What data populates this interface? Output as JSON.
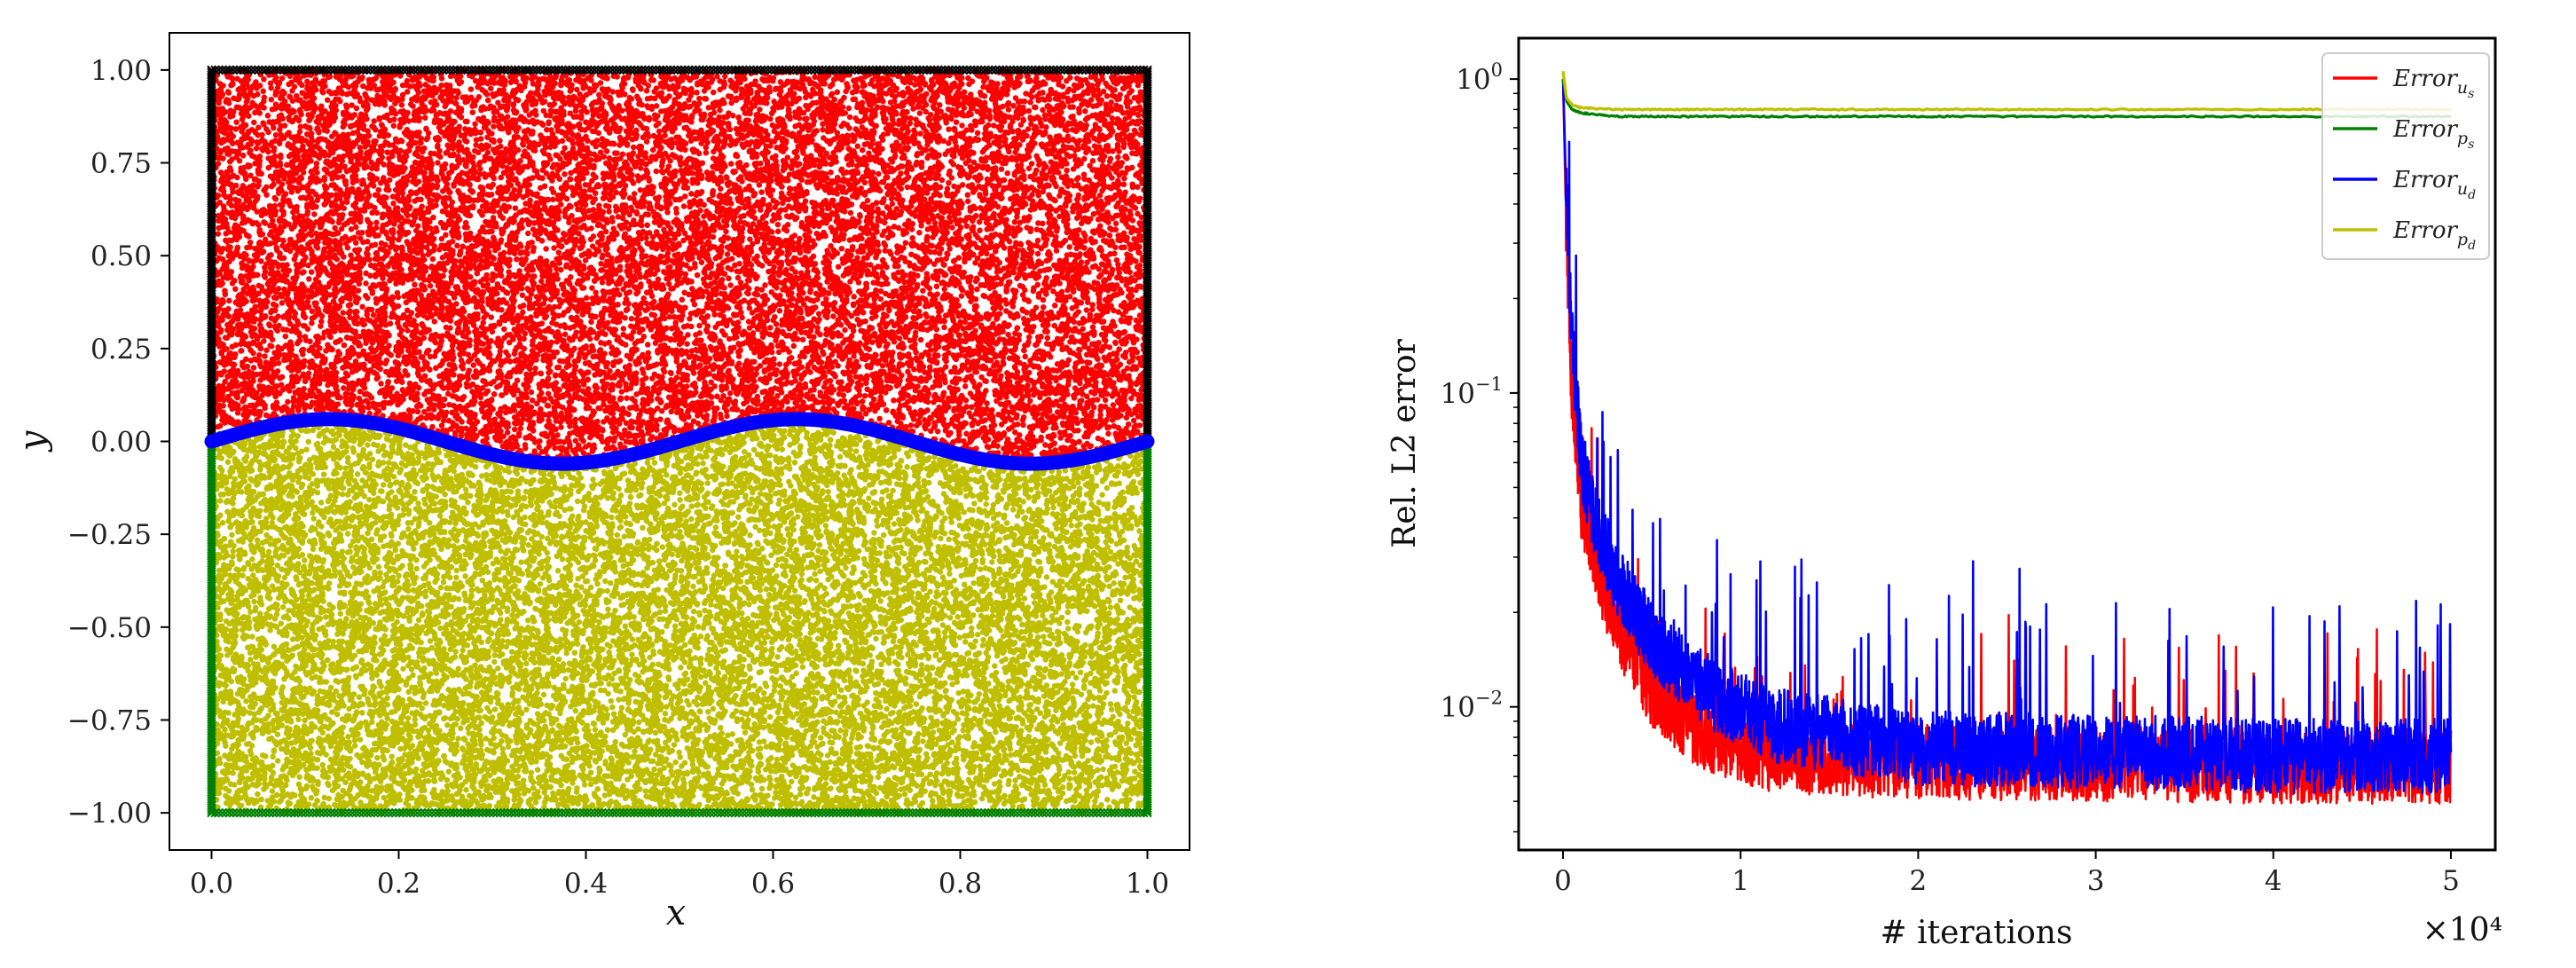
{
  "chart_data": [
    {
      "type": "scatter",
      "xlabel": "x",
      "ylabel": "y",
      "xlim": [
        -0.045,
        1.045
      ],
      "ylim": [
        -1.1,
        1.1
      ],
      "x_ticks": [
        "0.0",
        "0.2",
        "0.4",
        "0.6",
        "0.8",
        "1.0"
      ],
      "x_tick_values": [
        0.0,
        0.2,
        0.4,
        0.6,
        0.8,
        1.0
      ],
      "y_ticks": [
        "1.00",
        "0.75",
        "0.50",
        "0.25",
        "0.00",
        "−0.25",
        "−0.50",
        "−0.75",
        "−1.00"
      ],
      "y_tick_values": [
        1.0,
        0.75,
        0.5,
        0.25,
        0.0,
        -0.25,
        -0.5,
        -0.75,
        -1.0
      ],
      "interface": {
        "amplitude": 0.06,
        "periods": 2,
        "expression": "y = 0.06 sin(4πx)"
      },
      "regions": [
        {
          "name": "upper domain interior",
          "color": "#ff0000",
          "y_range": "interface to 1",
          "marker": "dot"
        },
        {
          "name": "lower domain interior",
          "color": "#bfbf00",
          "y_range": "-1 to interface",
          "marker": "dot"
        },
        {
          "name": "interface",
          "color": "#0000ff",
          "marker": "dot"
        },
        {
          "name": "upper boundary",
          "color": "#000000",
          "marker": "x"
        },
        {
          "name": "lower boundary",
          "color": "#008000",
          "marker": "x"
        }
      ]
    },
    {
      "type": "line",
      "xlabel": "# iterations",
      "ylabel": "Rel. L2 error",
      "yscale": "log",
      "xlim": [
        -2500,
        52500
      ],
      "ylim": [
        0.0035,
        1.35
      ],
      "x_ticks": [
        "0",
        "1",
        "2",
        "3",
        "4",
        "5"
      ],
      "x_tick_values": [
        0,
        10000,
        20000,
        30000,
        40000,
        50000
      ],
      "x_multiplier": "×10⁴",
      "y_ticks": [
        {
          "base": "10",
          "exp": "0",
          "value": 1
        },
        {
          "base": "10",
          "exp": "−1",
          "value": 0.1
        },
        {
          "base": "10",
          "exp": "−2",
          "value": 0.01
        }
      ],
      "legend_position": "top-right",
      "series": [
        {
          "name": "Error",
          "sub": "u",
          "subsub": "s",
          "color": "#ff0000",
          "x": [
            0,
            200,
            500,
            1000,
            2000,
            3000,
            5000,
            8000,
            12000,
            20000,
            30000,
            40000,
            50000
          ],
          "values": [
            1.0,
            0.3,
            0.1,
            0.045,
            0.026,
            0.018,
            0.011,
            0.0078,
            0.0068,
            0.0065,
            0.0064,
            0.0063,
            0.0063
          ]
        },
        {
          "name": "Error",
          "sub": "p",
          "subsub": "s",
          "color": "#008000",
          "x": [
            0,
            200,
            500,
            1000,
            3000,
            50000
          ],
          "values": [
            1.0,
            0.85,
            0.8,
            0.78,
            0.76,
            0.76
          ]
        },
        {
          "name": "Error",
          "sub": "u",
          "subsub": "d",
          "color": "#0000ff",
          "x": [
            0,
            200,
            500,
            1000,
            2000,
            3000,
            5000,
            8000,
            12000,
            20000,
            30000,
            40000,
            50000
          ],
          "values": [
            1.0,
            0.4,
            0.15,
            0.06,
            0.035,
            0.025,
            0.016,
            0.011,
            0.0085,
            0.0072,
            0.007,
            0.0068,
            0.0068
          ]
        },
        {
          "name": "Error",
          "sub": "p",
          "subsub": "d",
          "color": "#bfbf00",
          "x": [
            0,
            200,
            500,
            1000,
            3000,
            50000
          ],
          "values": [
            1.06,
            0.87,
            0.83,
            0.81,
            0.8,
            0.8
          ]
        }
      ]
    }
  ]
}
